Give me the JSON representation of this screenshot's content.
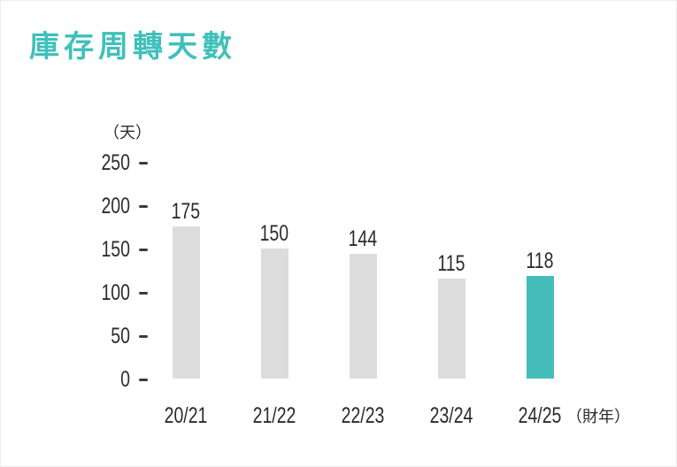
{
  "title": "庫存周轉天數",
  "chart_data": {
    "type": "bar",
    "title": "庫存周轉天數",
    "ylabel": "（天）",
    "xlabel": "",
    "x_axis_suffix": "（財年）",
    "categories": [
      "20/21",
      "21/22",
      "22/23",
      "23/24",
      "24/25"
    ],
    "values": [
      175,
      150,
      144,
      115,
      118
    ],
    "value_labels": [
      "175",
      "150",
      "144",
      "115",
      "118"
    ],
    "yticks": [
      "250",
      "200",
      "150",
      "100",
      "50",
      "0"
    ],
    "ylim": [
      0,
      250
    ],
    "grid": false,
    "legend": false,
    "highlight_index": 4,
    "colors": {
      "bar": "#dcdcdd",
      "highlight": "#45bdba",
      "title": "#3fc0bb",
      "text": "#2b2b2b"
    }
  }
}
